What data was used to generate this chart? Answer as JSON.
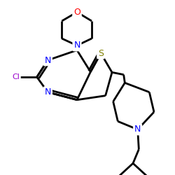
{
  "bg_color": "#ffffff",
  "lw": 2.0,
  "figsize": [
    2.5,
    2.5
  ],
  "dpi": 100,
  "xlim": [
    0,
    250
  ],
  "ylim": [
    0,
    250
  ],
  "atom_colors": {
    "N": "#0000ff",
    "O": "#ff0000",
    "S": "#808000",
    "Cl": "#9900cc",
    "C": "#000000"
  }
}
